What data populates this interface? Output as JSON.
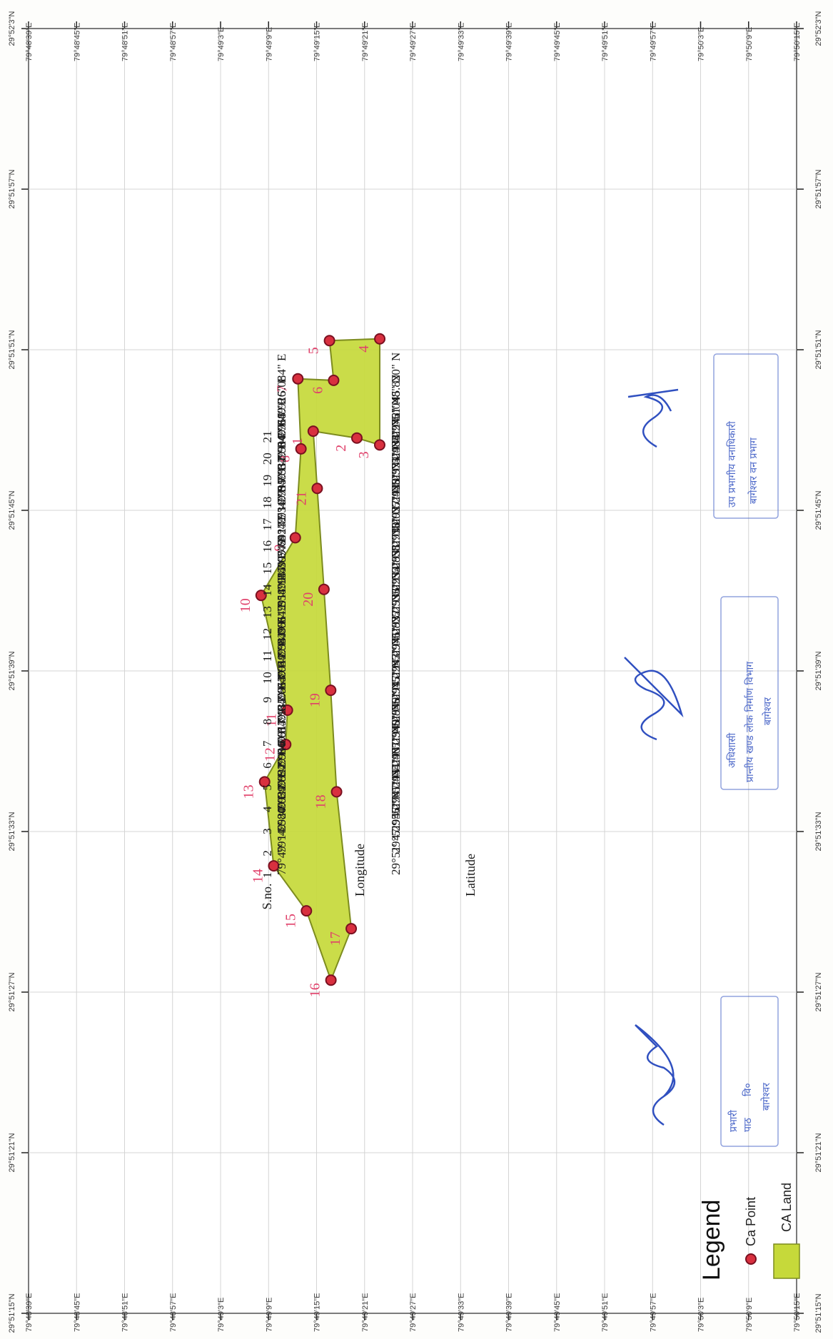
{
  "map": {
    "lon_ticks": [
      "79°48'39\"E",
      "79°48'45\"E",
      "79°48'51\"E",
      "79°48'57\"E",
      "79°49'3\"E",
      "79°49'9\"E",
      "79°49'15\"E",
      "79°49'21\"E",
      "79°49'27\"E",
      "79°49'33\"E",
      "79°49'39\"E",
      "79°49'45\"E",
      "79°49'51\"E",
      "79°49'57\"E",
      "79°50'3\"E",
      "79°50'9\"E",
      "79°50'15\"E"
    ],
    "lat_ticks": [
      "29°51'15\"N",
      "29°51'21\"N",
      "29°51'27\"N",
      "29°51'33\"N",
      "29°51'39\"N",
      "29°51'45\"N",
      "29°51'51\"N",
      "29°51'57\"N",
      "29°52'3\"N"
    ],
    "colors": {
      "land_fill": "#c6d93a",
      "land_stroke": "#7d8c1e",
      "point": "#d8303f",
      "label": "#e0406a",
      "grid": "#d4d4d4",
      "stamp": "#4a66c8"
    },
    "points": [
      {
        "id": "1",
        "lon": 14.58,
        "lat": 47.956
      },
      {
        "id": "2",
        "lon": 20.039,
        "lat": 47.701
      },
      {
        "id": "3",
        "lon": 22.892,
        "lat": 47.444
      },
      {
        "id": "4",
        "lon": 22.9,
        "lat": 51.407
      },
      {
        "id": "5",
        "lon": 16.613,
        "lat": 51.34
      },
      {
        "id": "6",
        "lon": 17.135,
        "lat": 49.856
      },
      {
        "id": "7",
        "lon": 12.663,
        "lat": 49.915
      },
      {
        "id": "8",
        "lon": 13.049,
        "lat": 47.297
      },
      {
        "id": "9",
        "lon": 12.343,
        "lat": 43.976
      },
      {
        "id": "10",
        "lon": 8.066,
        "lat": 41.822
      },
      {
        "id": "11",
        "lon": 11.358,
        "lat": 37.533
      },
      {
        "id": "12",
        "lon": 11.145,
        "lat": 36.252
      },
      {
        "id": "13",
        "lon": 8.507,
        "lat": 34.858
      },
      {
        "id": "14",
        "lon": 9.642,
        "lat": 31.718
      },
      {
        "id": "15",
        "lon": 13.731,
        "lat": 30.037
      },
      {
        "id": "16",
        "lon": 16.795,
        "lat": 27.448
      },
      {
        "id": "17",
        "lon": 19.332,
        "lat": 29.371
      },
      {
        "id": "18",
        "lon": 17.504,
        "lat": 34.484
      },
      {
        "id": "19",
        "lon": 16.768,
        "lat": 38.276
      },
      {
        "id": "20",
        "lon": 15.926,
        "lat": 42.048
      },
      {
        "id": "21",
        "lon": 15.084,
        "lat": 45.82
      }
    ]
  },
  "table": {
    "headers": {
      "sno": "S.no.",
      "longitude": "Longitude",
      "latitude": "Latitude"
    },
    "rows": [
      {
        "sno": "1",
        "lon": "79°49' 14.580\" E",
        "lat": "29°51' 47.956\" N"
      },
      {
        "sno": "2",
        "lon": "79°49' 20.039\" E",
        "lat": "29°51' 47.701\" N"
      },
      {
        "sno": "3",
        "lon": "79°49' 22.892\" E",
        "lat": "29°51' 47.444\" N"
      },
      {
        "sno": "4",
        "lon": "79°49' 22.900\" E",
        "lat": "29°51' 51.407\" N"
      },
      {
        "sno": "5",
        "lon": "79°49' 16.613\" E",
        "lat": "29°51' 51.340\" N"
      },
      {
        "sno": "6",
        "lon": "79°49' 17.135\" E",
        "lat": "29°51' 49.856\" N"
      },
      {
        "sno": "7",
        "lon": "79°49' 12.663\" E",
        "lat": "29°51' 49.915\" N"
      },
      {
        "sno": "8",
        "lon": "79°49' 13.049\" E",
        "lat": "29°51' 47.297\" N"
      },
      {
        "sno": "9",
        "lon": "79°49' 12.343\" E",
        "lat": "29°51' 43.976\" N"
      },
      {
        "sno": "10",
        "lon": "79°49' 8.066\" E",
        "lat": "29°51' 41.822\" N"
      },
      {
        "sno": "11",
        "lon": "79°49' 11.358\" E",
        "lat": "29°51' 37.533\" N"
      },
      {
        "sno": "12",
        "lon": "79°49' 11.145\" E",
        "lat": "29°51' 36.252\" N"
      },
      {
        "sno": "13",
        "lon": "79°49' 8.507\" E",
        "lat": "29°51' 34.858\" N"
      },
      {
        "sno": "14",
        "lon": "79°49' 9.642\" E",
        "lat": "29°51' 31.718\" N"
      },
      {
        "sno": "15",
        "lon": "79°49' 13.731\" E",
        "lat": "29°51' 30.037\" N"
      },
      {
        "sno": "16",
        "lon": "79°49' 16.795\" E",
        "lat": "29°51' 27.448\" N"
      },
      {
        "sno": "17",
        "lon": "79°49' 19.332\" E",
        "lat": "29°51' 29.371\" N"
      },
      {
        "sno": "18",
        "lon": "79°49' 17.504\" E",
        "lat": "29°51' 34.484\" N"
      },
      {
        "sno": "19",
        "lon": "79°49' 16.768\" E",
        "lat": "29°51' 38.276\" N"
      },
      {
        "sno": "20",
        "lon": "79°49' 15.926\" E",
        "lat": "29°51' 42.048\" N"
      },
      {
        "sno": "21",
        "lon": "79°49' 15.084\" E",
        "lat": "29°51' 45.820\" N"
      }
    ]
  },
  "legend": {
    "title": "Legend",
    "items": [
      {
        "label": "Ca Point",
        "symbol": "point"
      },
      {
        "label": "CA Land",
        "symbol": "land"
      }
    ]
  },
  "stamps": [
    {
      "lines": [
        "प्रभारी",
        "पाठ",
        "वि०",
        "बागेश्वर"
      ]
    },
    {
      "lines": [
        "अधिशासी",
        "प्रान्तीय खण्ड लोक निर्माण विभाग",
        "बागेश्वर"
      ]
    },
    {
      "lines": [
        "उप प्रभागीय वनाधिकारी",
        "बागेश्वर वन प्रभाग"
      ]
    }
  ]
}
